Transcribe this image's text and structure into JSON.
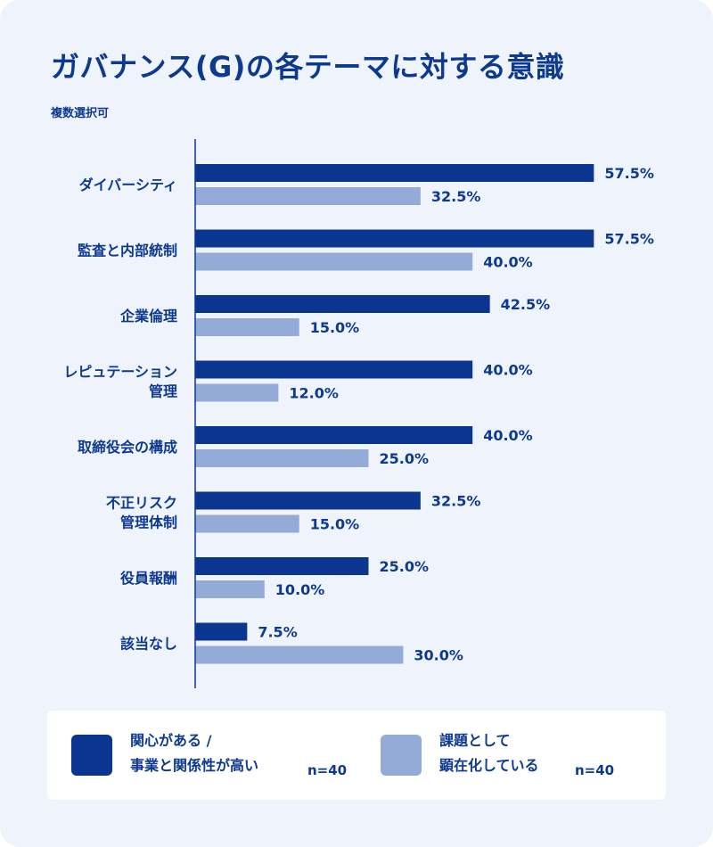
{
  "title": "ガバナンス(G)の各テーマに対する意識",
  "subtitle": "複数選択可",
  "colors": {
    "series1": "#0b3690",
    "series2": "#93abd6",
    "text": "#0d3a8f"
  },
  "chart_data": {
    "type": "bar",
    "orientation": "horizontal",
    "categories": [
      [
        "ダイバーシティ"
      ],
      [
        "監査と内部統制"
      ],
      [
        "企業倫理"
      ],
      [
        "レピュテーション",
        "管理"
      ],
      [
        "取締役会の構成"
      ],
      [
        "不正リスク",
        "管理体制"
      ],
      [
        "役員報酬"
      ],
      [
        "該当なし"
      ]
    ],
    "series": [
      {
        "name": "関心がある / 事業と関係性が高い",
        "legend_lines": [
          "関心がある /",
          "事業と関係性が高い"
        ],
        "n": "n=40",
        "values": [
          57.5,
          57.5,
          42.5,
          40.0,
          40.0,
          32.5,
          25.0,
          7.5
        ],
        "labels": [
          "57.5%",
          "57.5%",
          "42.5%",
          "40.0%",
          "40.0%",
          "32.5%",
          "25.0%",
          "7.5%"
        ]
      },
      {
        "name": "課題として顕在化している",
        "legend_lines": [
          "課題として",
          "顕在化している"
        ],
        "n": "n=40",
        "values": [
          32.5,
          40.0,
          15.0,
          12.0,
          25.0,
          15.0,
          10.0,
          30.0
        ],
        "labels": [
          "32.5%",
          "40.0%",
          "15.0%",
          "12.0%",
          "25.0%",
          "15.0%",
          "10.0%",
          "30.0%"
        ]
      }
    ],
    "xlim": [
      0,
      100
    ],
    "legend_position": "bottom",
    "grid": false
  }
}
